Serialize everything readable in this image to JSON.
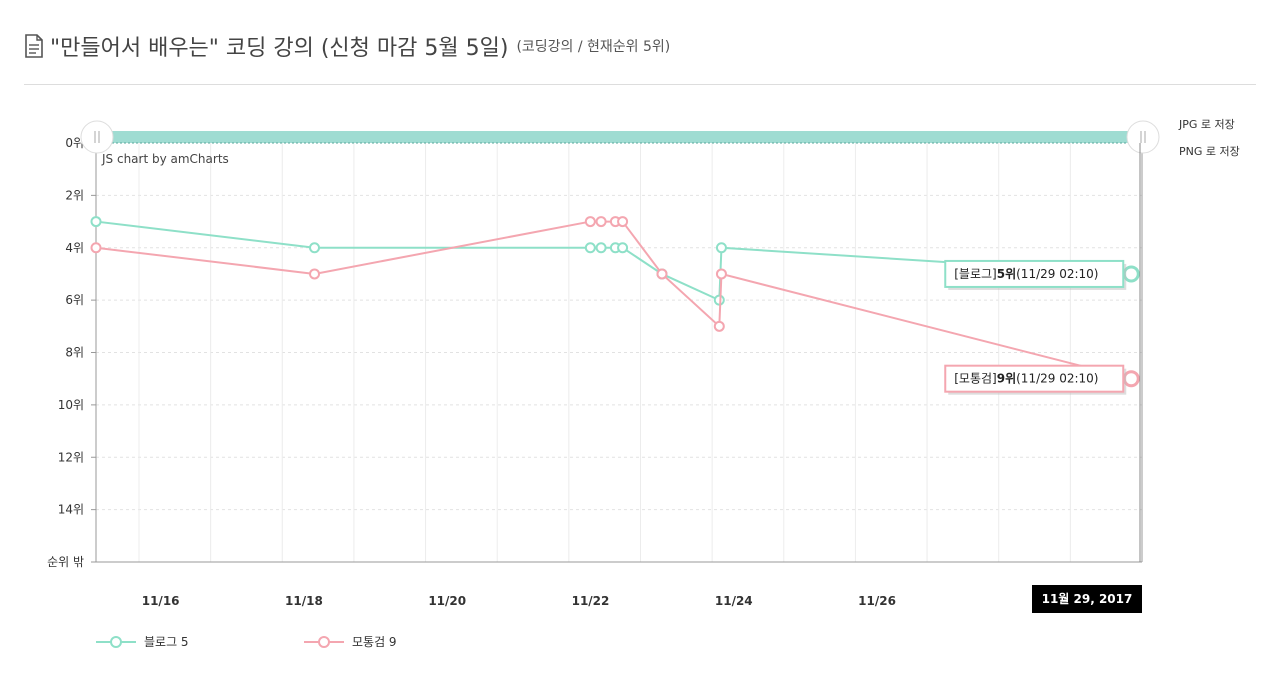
{
  "header": {
    "title": "\"만들어서 배우는\" 코딩 강의 (신청 마감 5월 5일)",
    "subtitle": "(코딩강의 / 현재순위 5위)"
  },
  "export": {
    "jpg_label": "JPG 로 저장",
    "png_label": "PNG 로 저장"
  },
  "credit": "JS chart by amCharts",
  "cursor_label": "11월 29, 2017",
  "chart_data": {
    "type": "line",
    "y_reversed": true,
    "ylim": [
      0,
      16
    ],
    "y_ticks": [
      {
        "value": 0,
        "label": "0위"
      },
      {
        "value": 2,
        "label": "2위"
      },
      {
        "value": 4,
        "label": "4위"
      },
      {
        "value": 6,
        "label": "6위"
      },
      {
        "value": 8,
        "label": "8위"
      },
      {
        "value": 10,
        "label": "10위"
      },
      {
        "value": 12,
        "label": "12위"
      },
      {
        "value": 14,
        "label": "14위"
      },
      {
        "value": 16,
        "label": "순위 밖"
      }
    ],
    "x_ticks": [
      {
        "value": 16,
        "label": "11/16"
      },
      {
        "value": 18,
        "label": "11/18"
      },
      {
        "value": 20,
        "label": "11/20"
      },
      {
        "value": 22,
        "label": "11/22"
      },
      {
        "value": 24,
        "label": "11/24"
      },
      {
        "value": 26,
        "label": "11/26"
      }
    ],
    "xlim": [
      14.6,
      29.2
    ],
    "grid": true,
    "series": [
      {
        "name": "블로그",
        "legend_label": "블로그 5",
        "color": "#8ee0c8",
        "points": [
          [
            14.6,
            3
          ],
          [
            17.65,
            4
          ],
          [
            21.5,
            4
          ],
          [
            21.65,
            4
          ],
          [
            21.85,
            4
          ],
          [
            21.95,
            4
          ],
          [
            22.5,
            5
          ],
          [
            23.3,
            6
          ],
          [
            23.33,
            4
          ],
          [
            29.05,
            5
          ]
        ],
        "balloon": {
          "prefix": "[블로그]",
          "rank": "5위",
          "time": "(11/29 02:10)"
        }
      },
      {
        "name": "모통검",
        "legend_label": "모통검 9",
        "color": "#f4a6b0",
        "points": [
          [
            14.6,
            4
          ],
          [
            17.65,
            5
          ],
          [
            21.5,
            3
          ],
          [
            21.65,
            3
          ],
          [
            21.85,
            3
          ],
          [
            21.95,
            3
          ],
          [
            22.5,
            5
          ],
          [
            23.3,
            7
          ],
          [
            23.33,
            5
          ],
          [
            29.05,
            9
          ]
        ],
        "balloon": {
          "prefix": "[모통검]",
          "rank": "9위",
          "time": "(11/29 02:10)"
        }
      }
    ]
  }
}
